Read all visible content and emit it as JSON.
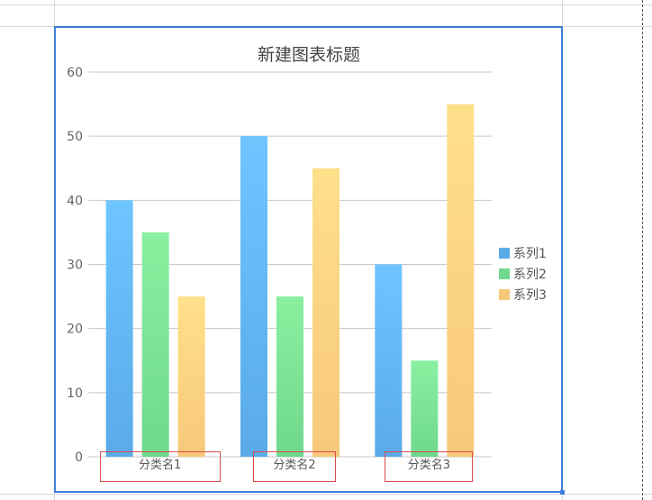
{
  "chart_data": {
    "type": "bar",
    "title": "新建图表标题",
    "categories": [
      "分类名1",
      "分类名2",
      "分类名3"
    ],
    "series": [
      {
        "name": "系列1",
        "values": [
          40,
          50,
          30
        ],
        "color_top": "#6ec5ff",
        "color_bottom": "#5aaae8"
      },
      {
        "name": "系列2",
        "values": [
          35,
          25,
          15
        ],
        "color_top": "#8af0a0",
        "color_bottom": "#6fd88c"
      },
      {
        "name": "系列3",
        "values": [
          25,
          45,
          55
        ],
        "color_top": "#ffe08a",
        "color_bottom": "#f7c87a"
      }
    ],
    "ylim": [
      0,
      60
    ],
    "yticks": [
      0,
      10,
      20,
      30,
      40,
      50,
      60
    ],
    "grid": true,
    "legend": "right"
  },
  "colors": {
    "frame": "#3b7fd9",
    "grid": "#c8c8c8",
    "axis_text": "#666666",
    "category_highlight": "#d94c4c"
  }
}
